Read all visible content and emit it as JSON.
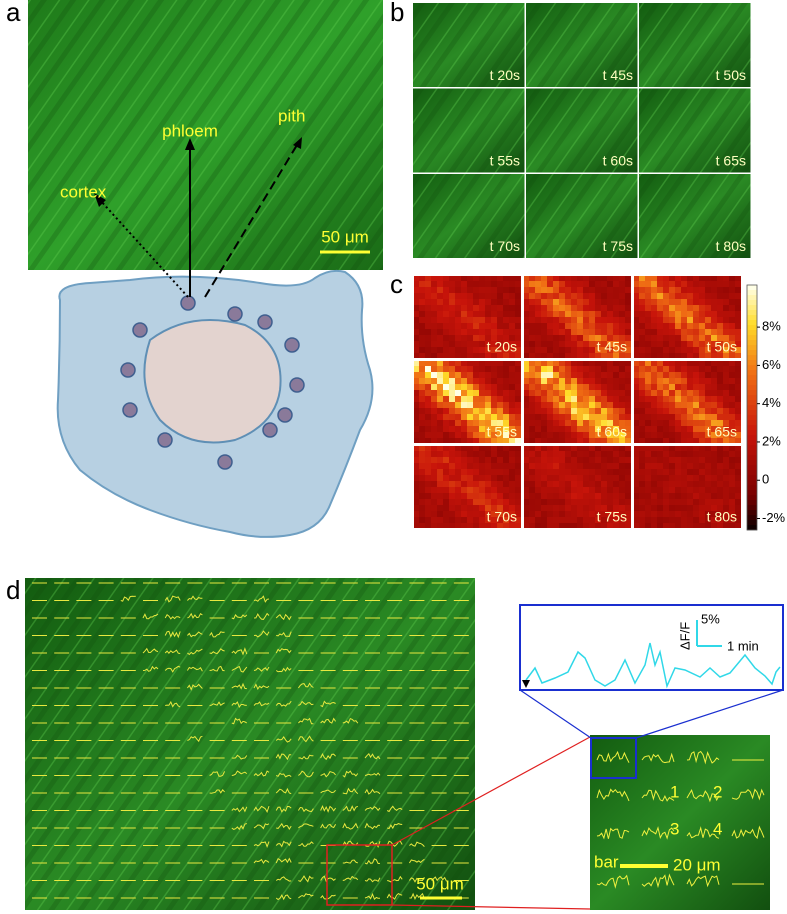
{
  "panel_a": {
    "label": "a",
    "annotations": [
      "cortex",
      "phloem",
      "pith"
    ],
    "scale_bar": "50 μm"
  },
  "panel_b": {
    "label": "b",
    "frames": [
      "t 20s",
      "t 45s",
      "t 50s",
      "t 55s",
      "t 60s",
      "t 65s",
      "t 70s",
      "t 75s",
      "t 80s"
    ]
  },
  "panel_c": {
    "label": "c",
    "frames": [
      "t 20s",
      "t 45s",
      "t 50s",
      "t 55s",
      "t 60s",
      "t 65s",
      "t 70s",
      "t 75s",
      "t 80s"
    ],
    "colorbar": {
      "lim": [
        -2.6,
        10.2
      ],
      "ticks": [
        {
          "value": 8,
          "label": "8%"
        },
        {
          "value": 6,
          "label": "6%"
        },
        {
          "value": 4,
          "label": "4%"
        },
        {
          "value": 2,
          "label": "2%"
        },
        0,
        {
          "value": -2,
          "label": "-2%"
        }
      ]
    }
  },
  "panel_d": {
    "label": "d",
    "scale_bar": "50 μm",
    "inset": {
      "scale_y": "5%",
      "y_label": "ΔF/F",
      "scale_x": "1 min"
    },
    "roi_labels": [
      "1",
      "2",
      "3",
      "4"
    ],
    "bar_label": "bar",
    "bar_scale": "20 μm"
  }
}
